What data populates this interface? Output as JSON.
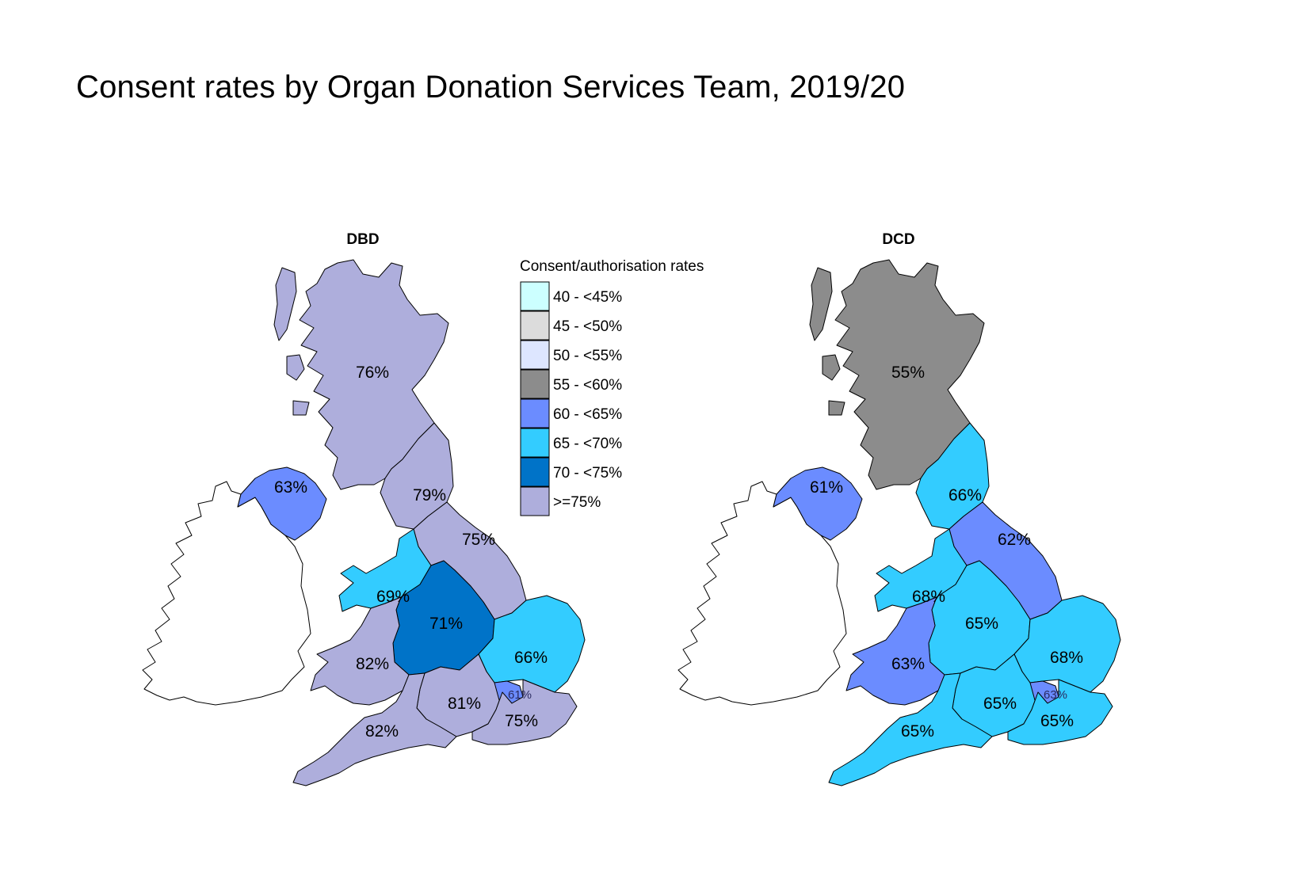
{
  "title": "Consent rates by Organ Donation Services Team, 2019/20",
  "legend": {
    "title": "Consent/authorisation rates",
    "items": [
      {
        "label": "40 - <45%",
        "color": "#ccffff"
      },
      {
        "label": "45 - <50%",
        "color": "#dcdcdc"
      },
      {
        "label": "50 - <55%",
        "color": "#dde6ff"
      },
      {
        "label": "55 - <60%",
        "color": "#8c8c8c"
      },
      {
        "label": "60 - <65%",
        "color": "#6b8cff"
      },
      {
        "label": "65 - <70%",
        "color": "#33ccff"
      },
      {
        "label": "70 - <75%",
        "color": "#0073c8"
      },
      {
        "label": ">=75%",
        "color": "#aeaedc"
      }
    ]
  },
  "maps": [
    {
      "name": "DBD",
      "regions": {
        "scotland": "76%",
        "northern_ireland": "63%",
        "north_west": "79%",
        "yorkshire": "75%",
        "north_wales": "69%",
        "midlands": "71%",
        "south_wales": "82%",
        "eastern": "66%",
        "south_central": "81%",
        "london": "61%",
        "south_east": "75%",
        "south_west": "82%"
      }
    },
    {
      "name": "DCD",
      "regions": {
        "scotland": "55%",
        "northern_ireland": "61%",
        "north_west": "66%",
        "yorkshire": "62%",
        "north_wales": "68%",
        "midlands": "65%",
        "south_wales": "63%",
        "eastern": "68%",
        "south_central": "65%",
        "london": "63%",
        "south_east": "65%",
        "south_west": "65%"
      }
    }
  ]
}
